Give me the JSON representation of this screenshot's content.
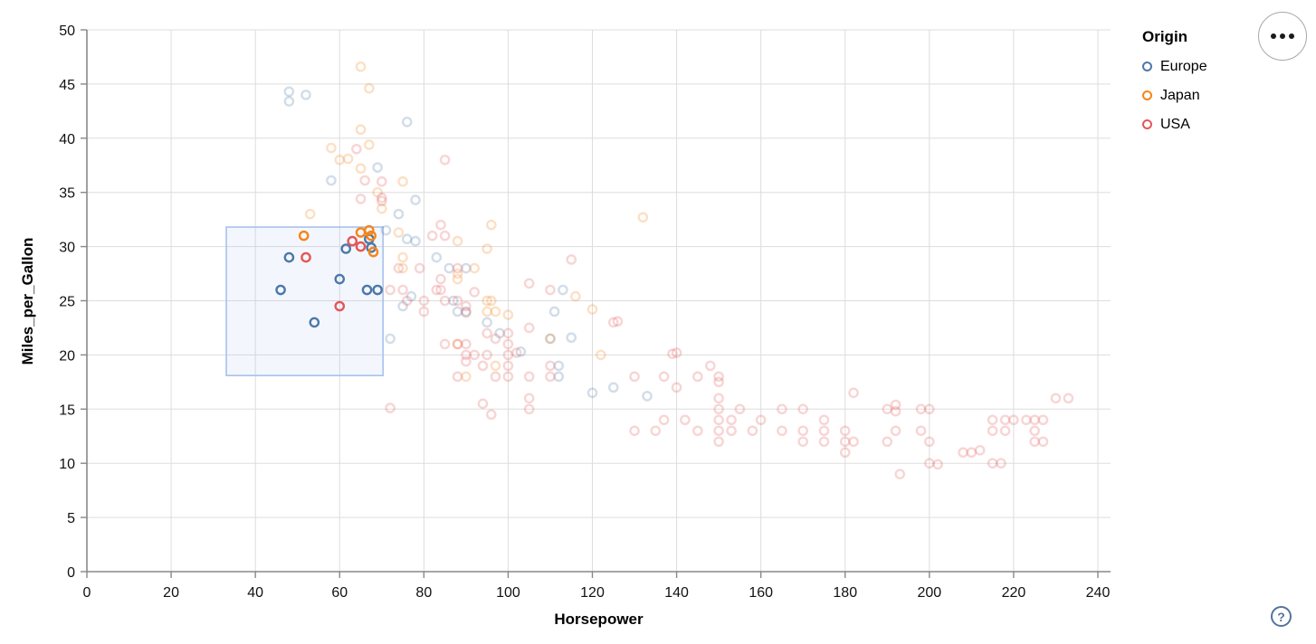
{
  "legend": {
    "title": "Origin",
    "items": [
      {
        "label": "Europe",
        "color": "#4c78a8"
      },
      {
        "label": "Japan",
        "color": "#f58518"
      },
      {
        "label": "USA",
        "color": "#e45756"
      }
    ]
  },
  "controls": {
    "options_button": {
      "icon": "ellipsis"
    },
    "help_button": {
      "glyph": "?"
    }
  },
  "chart_data": {
    "type": "scatter",
    "title": "",
    "xlabel": "Horsepower",
    "ylabel": "Miles_per_Gallon",
    "xlim": [
      0,
      243
    ],
    "ylim": [
      0,
      50
    ],
    "x_ticks": [
      0,
      20,
      40,
      60,
      80,
      100,
      120,
      140,
      160,
      180,
      200,
      220,
      240
    ],
    "y_ticks": [
      0,
      5,
      10,
      15,
      20,
      25,
      30,
      35,
      40,
      45,
      50
    ],
    "grid": true,
    "legend_position": "top-right",
    "point_shape": "open-circle",
    "unselected_opacity": 0.25,
    "colors": {
      "grid": "#dddddd",
      "axis": "#888888",
      "brush_fill": "rgba(160,190,235,0.12)",
      "brush_stroke": "#a9c1ec"
    },
    "brush": {
      "x": [
        33.1,
        70.3
      ],
      "y": [
        18.1,
        31.8
      ]
    },
    "series": [
      {
        "name": "Europe",
        "color": "#4c78a8",
        "points": [
          [
            46,
            26
          ],
          [
            48,
            29
          ],
          [
            54,
            23
          ],
          [
            60,
            27
          ],
          [
            61.5,
            29.8
          ],
          [
            66.5,
            26
          ],
          [
            69,
            26
          ],
          [
            67,
            30.7
          ],
          [
            67.5,
            29.9
          ],
          [
            48,
            44.3
          ],
          [
            52,
            44
          ],
          [
            48,
            43.4
          ],
          [
            76,
            41.5
          ],
          [
            78,
            34.3
          ],
          [
            74,
            33
          ],
          [
            58,
            36.1
          ],
          [
            69,
            37.3
          ],
          [
            71,
            31.5
          ],
          [
            76,
            30.7
          ],
          [
            78,
            30.5
          ],
          [
            83,
            29
          ],
          [
            86,
            28
          ],
          [
            90,
            28
          ],
          [
            87,
            25
          ],
          [
            88,
            24
          ],
          [
            90,
            24
          ],
          [
            95,
            23
          ],
          [
            113,
            26
          ],
          [
            110,
            21.5
          ],
          [
            115,
            21.6
          ],
          [
            112,
            19
          ],
          [
            112,
            18
          ],
          [
            103,
            20.3
          ],
          [
            77,
            25.4
          ],
          [
            75,
            24.5
          ],
          [
            98,
            22
          ],
          [
            120,
            16.5
          ],
          [
            125,
            17
          ],
          [
            133,
            16.2
          ],
          [
            111,
            24
          ],
          [
            72,
            21.5
          ]
        ]
      },
      {
        "name": "Japan",
        "color": "#f58518",
        "points": [
          [
            51.5,
            31
          ],
          [
            65,
            31.3
          ],
          [
            67,
            31.5
          ],
          [
            67.5,
            31
          ],
          [
            68,
            29.5
          ],
          [
            65,
            46.6
          ],
          [
            67,
            44.6
          ],
          [
            65,
            40.8
          ],
          [
            67,
            39.4
          ],
          [
            58,
            39.1
          ],
          [
            62,
            38.1
          ],
          [
            65,
            37.2
          ],
          [
            69,
            35
          ],
          [
            60,
            38
          ],
          [
            53,
            33
          ],
          [
            70,
            33.5
          ],
          [
            75,
            36
          ],
          [
            74,
            31.3
          ],
          [
            75,
            29
          ],
          [
            75,
            28
          ],
          [
            88,
            30.5
          ],
          [
            95,
            29.8
          ],
          [
            96,
            32
          ],
          [
            92,
            28
          ],
          [
            88,
            27
          ],
          [
            88,
            27.5
          ],
          [
            95,
            25
          ],
          [
            96,
            25
          ],
          [
            97,
            24
          ],
          [
            95,
            24
          ],
          [
            100,
            23.7
          ],
          [
            110,
            21.5
          ],
          [
            116,
            25.4
          ],
          [
            120,
            24.2
          ],
          [
            122,
            20
          ],
          [
            132,
            32.7
          ],
          [
            97,
            19
          ],
          [
            90,
            18
          ],
          [
            88,
            21
          ]
        ]
      },
      {
        "name": "USA",
        "color": "#e45756",
        "points": [
          [
            52,
            29
          ],
          [
            60,
            24.5
          ],
          [
            63,
            30.5
          ],
          [
            65,
            30
          ],
          [
            64,
            39
          ],
          [
            66,
            36.1
          ],
          [
            65,
            34.4
          ],
          [
            70,
            36
          ],
          [
            70,
            34.2
          ],
          [
            70,
            34.5
          ],
          [
            85,
            38
          ],
          [
            84,
            32
          ],
          [
            85,
            31
          ],
          [
            82,
            31
          ],
          [
            79,
            28
          ],
          [
            88,
            28
          ],
          [
            72,
            26
          ],
          [
            74,
            28
          ],
          [
            75,
            26
          ],
          [
            76,
            25
          ],
          [
            80,
            25
          ],
          [
            80,
            24
          ],
          [
            83,
            26
          ],
          [
            84,
            27
          ],
          [
            84,
            26
          ],
          [
            85,
            25
          ],
          [
            88,
            25
          ],
          [
            90,
            24.5
          ],
          [
            92,
            25.8
          ],
          [
            90,
            23.9
          ],
          [
            105,
            26.6
          ],
          [
            100,
            22
          ],
          [
            100,
            21
          ],
          [
            105,
            22.5
          ],
          [
            115,
            28.8
          ],
          [
            110,
            26
          ],
          [
            85,
            21
          ],
          [
            88,
            21
          ],
          [
            90,
            21
          ],
          [
            95,
            22
          ],
          [
            97,
            18
          ],
          [
            100,
            19
          ],
          [
            100,
            18
          ],
          [
            105,
            18
          ],
          [
            110,
            19
          ],
          [
            90,
            20
          ],
          [
            92,
            20
          ],
          [
            94,
            19
          ],
          [
            95,
            20
          ],
          [
            100,
            20
          ],
          [
            105,
            16
          ],
          [
            110,
            18
          ],
          [
            88,
            18
          ],
          [
            97,
            21.5
          ],
          [
            90,
            19.4
          ],
          [
            102,
            20.2
          ],
          [
            72,
            15.1
          ],
          [
            94,
            15.5
          ],
          [
            96,
            14.5
          ],
          [
            105,
            15
          ],
          [
            130,
            18
          ],
          [
            137,
            18
          ],
          [
            140,
            17
          ],
          [
            150,
            18
          ],
          [
            150,
            16
          ],
          [
            140,
            20.2
          ],
          [
            126,
            23.1
          ],
          [
            125,
            23
          ],
          [
            139,
            20.1
          ],
          [
            130,
            13
          ],
          [
            135,
            13
          ],
          [
            145,
            18
          ],
          [
            148,
            19
          ],
          [
            150,
            17.5
          ],
          [
            150,
            15
          ],
          [
            150,
            14
          ],
          [
            150,
            13
          ],
          [
            150,
            12
          ],
          [
            153,
            14
          ],
          [
            153,
            13
          ],
          [
            155,
            15
          ],
          [
            158,
            13
          ],
          [
            160,
            14
          ],
          [
            165,
            15
          ],
          [
            165,
            13
          ],
          [
            170,
            15
          ],
          [
            170,
            13
          ],
          [
            170,
            12
          ],
          [
            175,
            14
          ],
          [
            175,
            13
          ],
          [
            175,
            12
          ],
          [
            180,
            13
          ],
          [
            180,
            12
          ],
          [
            180,
            11
          ],
          [
            182,
            16.5
          ],
          [
            182,
            12
          ],
          [
            190,
            15
          ],
          [
            190,
            12
          ],
          [
            192,
            15.4
          ],
          [
            192,
            14.8
          ],
          [
            192,
            13
          ],
          [
            193,
            9
          ],
          [
            198,
            15
          ],
          [
            198,
            13
          ],
          [
            200,
            15
          ],
          [
            200,
            12
          ],
          [
            200,
            10
          ],
          [
            202,
            9.9
          ],
          [
            208,
            11
          ],
          [
            210,
            11
          ],
          [
            212,
            11.2
          ],
          [
            215,
            14
          ],
          [
            215,
            13
          ],
          [
            215,
            10
          ],
          [
            217,
            10
          ],
          [
            218,
            14
          ],
          [
            218,
            13
          ],
          [
            220,
            14
          ],
          [
            223,
            14
          ],
          [
            225,
            14
          ],
          [
            225,
            13
          ],
          [
            225,
            12
          ],
          [
            227,
            14
          ],
          [
            227,
            12
          ],
          [
            230,
            16
          ],
          [
            233,
            16
          ],
          [
            145,
            13
          ],
          [
            142,
            14
          ],
          [
            137,
            14
          ]
        ]
      }
    ]
  }
}
